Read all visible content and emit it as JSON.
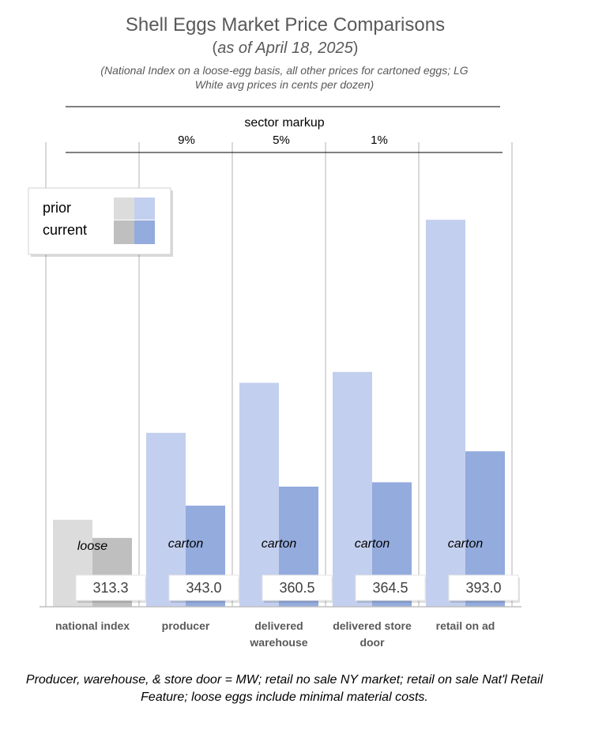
{
  "chart_data": {
    "type": "bar",
    "title": "Shell Eggs Market Price Comparisons",
    "subtitle_prefix": "(",
    "subtitle_date": "as of April 18, 2025",
    "subtitle_suffix": ")",
    "note": "(National Index on a loose-egg basis, all other prices for cartoned eggs; LG White avg prices in cents per dozen)",
    "footnote": "Producer, warehouse, & store door = MW; retail no sale NY market; retail on sale Nat'l Retail Feature; loose eggs include minimal material costs.",
    "sector_markup_label": "sector markup",
    "markups": [
      "9%",
      "5%",
      "1%"
    ],
    "categories": [
      {
        "lines": [
          "national index"
        ]
      },
      {
        "lines": [
          "producer"
        ]
      },
      {
        "lines": [
          "delivered",
          "warehouse"
        ]
      },
      {
        "lines": [
          "delivered store",
          "door"
        ]
      },
      {
        "lines": [
          "retail on ad"
        ]
      }
    ],
    "packaging": [
      "loose",
      "carton",
      "carton",
      "carton",
      "carton"
    ],
    "series": [
      {
        "name": "prior",
        "values": [
          330,
          410,
          456,
          466,
          606
        ]
      },
      {
        "name": "current",
        "values": [
          313.3,
          343.0,
          360.5,
          364.5,
          393.0
        ]
      }
    ],
    "value_labels": [
      "313.3",
      "343.0",
      "360.5",
      "364.5",
      "393.0"
    ],
    "ylim": [
      250,
      625
    ],
    "legend": {
      "position": "top-left",
      "items": [
        "prior",
        "current"
      ]
    },
    "colors": {
      "loose_prior": "#dcdcdc",
      "loose_current": "#bfbfbf",
      "carton_prior": "#c3cfee",
      "carton_current": "#93abdd",
      "gridline": "#d9d9d9",
      "axis": "#bfbfbf"
    }
  }
}
